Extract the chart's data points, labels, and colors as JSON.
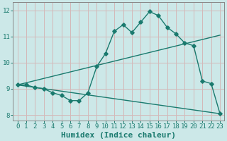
{
  "xlabel": "Humidex (Indice chaleur)",
  "ylabel": "",
  "bg_color": "#cce8e8",
  "grid_color": "#d4b8b8",
  "line_color": "#1a7a6e",
  "xlim": [
    -0.5,
    23.5
  ],
  "ylim": [
    7.8,
    12.3
  ],
  "xticks": [
    0,
    1,
    2,
    3,
    4,
    5,
    6,
    7,
    8,
    9,
    10,
    11,
    12,
    13,
    14,
    15,
    16,
    17,
    18,
    19,
    20,
    21,
    22,
    23
  ],
  "yticks": [
    8,
    9,
    10,
    11,
    12
  ],
  "curve1_x": [
    0,
    1,
    2,
    3,
    4,
    5,
    6,
    7,
    8,
    9,
    10,
    11,
    12,
    13,
    14,
    15,
    16,
    17,
    18,
    19,
    20,
    21,
    22,
    23
  ],
  "curve1_y": [
    9.15,
    9.15,
    9.05,
    9.0,
    8.85,
    8.75,
    8.55,
    8.55,
    8.85,
    9.85,
    10.35,
    11.2,
    11.45,
    11.15,
    11.55,
    11.95,
    11.8,
    11.35,
    11.1,
    10.75,
    10.65,
    9.3,
    9.2,
    8.05
  ],
  "line2_x": [
    0,
    23
  ],
  "line2_y": [
    9.15,
    11.05
  ],
  "line3_x": [
    0,
    23
  ],
  "line3_y": [
    9.15,
    8.05
  ],
  "marker_size": 2.8,
  "line_width": 1.0,
  "font_size_label": 8,
  "font_size_tick": 6.5
}
